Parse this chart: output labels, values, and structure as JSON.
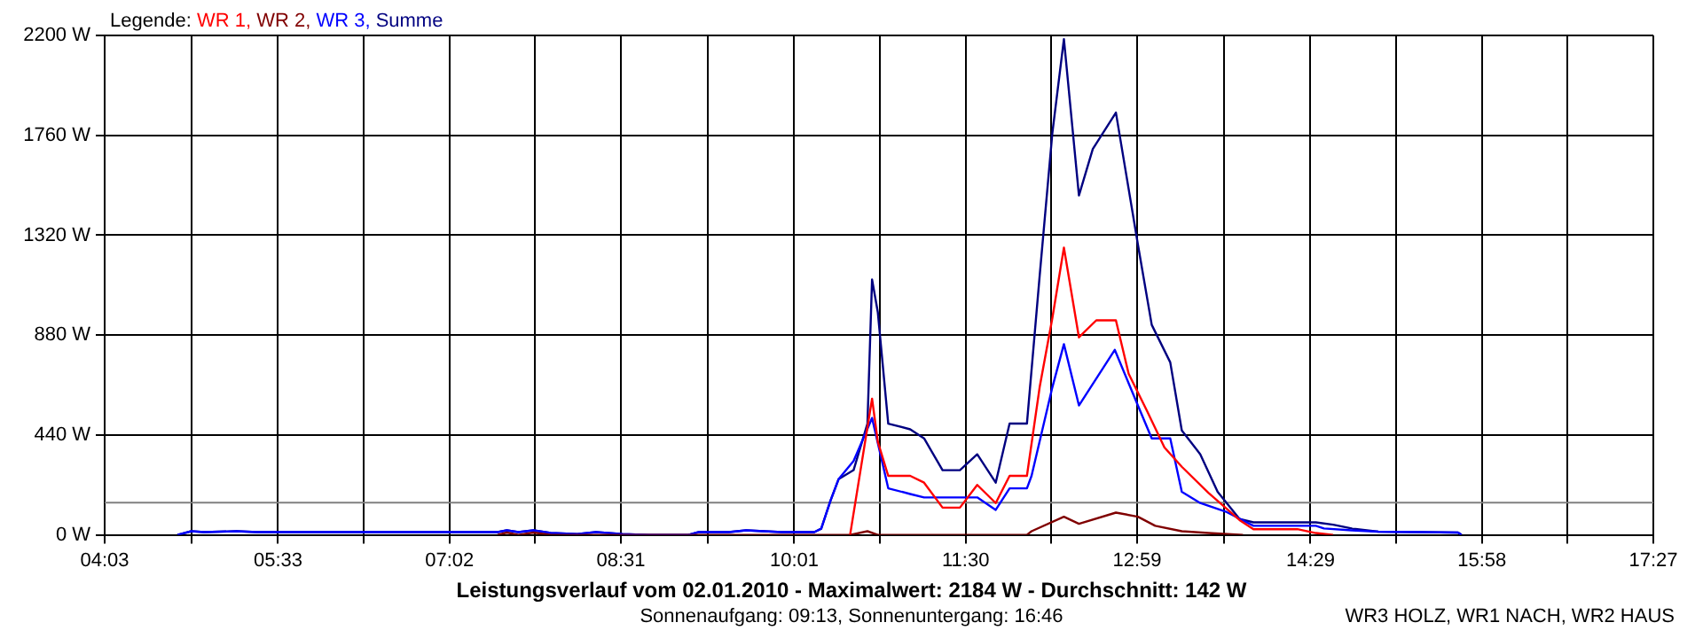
{
  "chart_data": {
    "type": "line",
    "title": "Leistungsverlauf vom 02.01.2010 - Maximalwert: 2184 W - Durchschnitt: 142 W",
    "subtitle": "Sonnenaufgang: 09:13, Sonnenuntergang: 16:46",
    "legend_title": "Legende:",
    "annotations": [
      "WR3 HOLZ, WR1 NACH, WR2 HAUS"
    ],
    "xlim": [
      4.05,
      17.45
    ],
    "xticks": [
      {
        "value": 4.05,
        "label": "04:03"
      },
      {
        "value": 4.8,
        "label": null
      },
      {
        "value": 5.55,
        "label": "05:33"
      },
      {
        "value": 6.29,
        "label": null
      },
      {
        "value": 7.0333,
        "label": "07:02"
      },
      {
        "value": 7.775,
        "label": null
      },
      {
        "value": 8.5167,
        "label": "08:31"
      },
      {
        "value": 9.267,
        "label": null
      },
      {
        "value": 10.0167,
        "label": "10:01"
      },
      {
        "value": 10.758,
        "label": null
      },
      {
        "value": 11.5,
        "label": "11:30"
      },
      {
        "value": 12.242,
        "label": null
      },
      {
        "value": 12.9833,
        "label": "12:59"
      },
      {
        "value": 13.733,
        "label": null
      },
      {
        "value": 14.4833,
        "label": "14:29"
      },
      {
        "value": 15.225,
        "label": null
      },
      {
        "value": 15.9667,
        "label": "15:58"
      },
      {
        "value": 16.708,
        "label": null
      },
      {
        "value": 17.45,
        "label": "17:27"
      }
    ],
    "ylim": [
      0,
      2200
    ],
    "yticks": [
      {
        "value": 0,
        "label": "0 W"
      },
      {
        "value": 440,
        "label": "440 W"
      },
      {
        "value": 880,
        "label": "880 W"
      },
      {
        "value": 1320,
        "label": "1320 W"
      },
      {
        "value": 1760,
        "label": "1760 W"
      },
      {
        "value": 2200,
        "label": "2200 W"
      }
    ],
    "grid": true,
    "legend": "top left",
    "marker": "none",
    "line_style": "solid",
    "ref_lines": [
      {
        "axis": "y",
        "value": 142,
        "label": null,
        "color": "#808080"
      }
    ],
    "series": [
      {
        "name": "WR 1,",
        "color": "#ff0000",
        "x": [
          10.5,
          10.69,
          10.74,
          10.83,
          11.02,
          11.14,
          11.3,
          11.45,
          11.6,
          11.76,
          11.88,
          12.03,
          12.14,
          12.25,
          12.35,
          12.48,
          12.63,
          12.8,
          12.91,
          13.07,
          13.22,
          13.37,
          13.6,
          13.87,
          13.99,
          14.37,
          14.53,
          14.68
        ],
        "values": [
          0,
          600,
          410,
          260,
          260,
          230,
          120,
          120,
          220,
          140,
          260,
          260,
          650,
          955,
          1265,
          870,
          945,
          945,
          710,
          545,
          385,
          300,
          185,
          65,
          25,
          25,
          8,
          0
        ]
      },
      {
        "name": "WR 2,",
        "color": "#800000",
        "x": [
          7.45,
          7.53,
          7.63,
          7.76,
          7.91,
          10.5,
          10.65,
          10.74,
          12.03,
          12.07,
          12.35,
          12.48,
          12.8,
          12.99,
          13.14,
          13.37,
          13.6,
          13.9
        ],
        "values": [
          0,
          10,
          0,
          10,
          0,
          0,
          16,
          0,
          0,
          16,
          80,
          49,
          98,
          80,
          40,
          16,
          8,
          0
        ]
      },
      {
        "name": "WR 3,",
        "color": "#0000ff",
        "x": [
          4.68,
          4.8,
          4.91,
          5.19,
          5.37,
          7.45,
          7.53,
          7.63,
          7.76,
          7.91,
          8.14,
          8.3,
          8.53,
          8.76,
          9.1,
          9.19,
          9.45,
          9.6,
          9.91,
          10.19,
          10.25,
          10.33,
          10.4,
          10.53,
          10.69,
          10.83,
          11.02,
          11.14,
          11.6,
          11.76,
          11.88,
          12.03,
          12.07,
          12.25,
          12.35,
          12.48,
          12.79,
          12.99,
          13.11,
          13.27,
          13.37,
          13.53,
          13.76,
          13.99,
          14.53,
          14.6,
          14.84,
          15.07,
          15.45,
          15.76,
          15.79
        ],
        "values": [
          0,
          16,
          12,
          16,
          12,
          12,
          20,
          12,
          20,
          8,
          4,
          12,
          4,
          0,
          0,
          12,
          12,
          20,
          12,
          12,
          27,
          150,
          245,
          325,
          515,
          205,
          180,
          165,
          165,
          110,
          205,
          205,
          260,
          650,
          840,
          570,
          815,
          570,
          425,
          425,
          190,
          140,
          100,
          40,
          40,
          28,
          20,
          14,
          12,
          10,
          0
        ]
      },
      {
        "name": "Summe",
        "color": "#000080",
        "x": [
          4.68,
          4.8,
          4.91,
          5.19,
          5.37,
          7.45,
          7.53,
          7.63,
          7.76,
          7.91,
          8.14,
          8.3,
          8.53,
          8.76,
          9.1,
          9.19,
          9.45,
          9.6,
          9.91,
          10.19,
          10.25,
          10.33,
          10.4,
          10.53,
          10.65,
          10.69,
          10.74,
          10.83,
          11.02,
          11.14,
          11.3,
          11.45,
          11.6,
          11.76,
          11.88,
          12.03,
          12.14,
          12.25,
          12.35,
          12.48,
          12.6,
          12.8,
          12.99,
          13.11,
          13.27,
          13.37,
          13.53,
          13.68,
          13.87,
          13.99,
          14.53,
          14.68,
          14.84,
          15.07,
          15.76,
          15.79
        ],
        "values": [
          0,
          16,
          12,
          16,
          12,
          12,
          20,
          12,
          20,
          8,
          4,
          12,
          4,
          0,
          0,
          12,
          12,
          20,
          12,
          12,
          27,
          150,
          245,
          285,
          490,
          1125,
          980,
          490,
          465,
          425,
          285,
          285,
          355,
          230,
          490,
          490,
          1140,
          1770,
          2184,
          1495,
          1700,
          1860,
          1280,
          925,
          760,
          460,
          355,
          190,
          70,
          55,
          55,
          45,
          28,
          14,
          10,
          0
        ]
      }
    ]
  }
}
